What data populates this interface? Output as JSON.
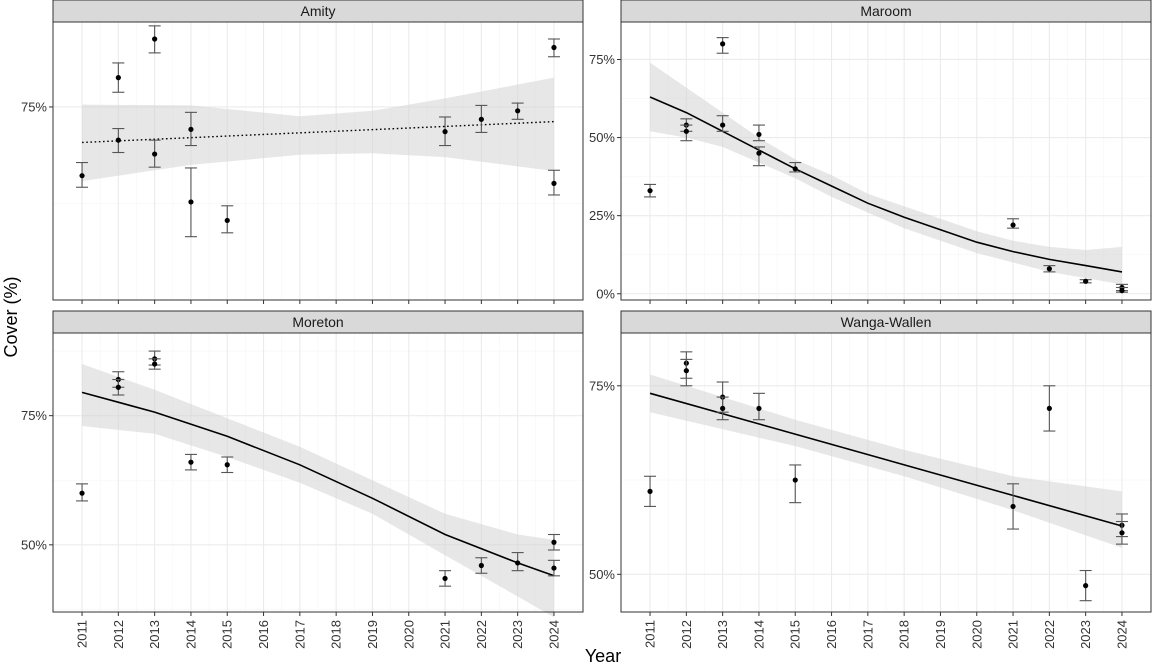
{
  "chart_data": {
    "type": "scatter",
    "xlabel": "Year",
    "ylabel": "Cover (%)",
    "x_ticks": [
      2011,
      2012,
      2013,
      2014,
      2015,
      2016,
      2017,
      2018,
      2019,
      2020,
      2021,
      2022,
      2023,
      2024
    ],
    "xlim": [
      2010.2,
      2024.8
    ],
    "colors": {
      "panel_bg": "#ffffff",
      "grid_major": "#ebebeb",
      "grid_minor": "#f5f5f5",
      "strip_bg": "#d9d9d9",
      "ribbon": "#d4d4d4",
      "line": "#000000",
      "error_bar": "#555555"
    },
    "panels": [
      {
        "name": "Amity",
        "ylim": [
          0.5,
          0.86
        ],
        "y_ticks": [
          0.75
        ],
        "y_tick_labels": [
          "75%"
        ],
        "points": [
          {
            "x": 2011,
            "y": 0.661,
            "lo": 0.646,
            "hi": 0.678
          },
          {
            "x": 2012,
            "y": 0.788,
            "lo": 0.769,
            "hi": 0.807
          },
          {
            "x": 2012,
            "y": 0.707,
            "lo": 0.691,
            "hi": 0.722
          },
          {
            "x": 2013,
            "y": 0.838,
            "lo": 0.82,
            "hi": 0.855
          },
          {
            "x": 2013,
            "y": 0.689,
            "lo": 0.672,
            "hi": 0.707
          },
          {
            "x": 2014,
            "y": 0.721,
            "lo": 0.7,
            "hi": 0.743
          },
          {
            "x": 2014,
            "y": 0.627,
            "lo": 0.582,
            "hi": 0.671
          },
          {
            "x": 2015,
            "y": 0.603,
            "lo": 0.587,
            "hi": 0.622
          },
          {
            "x": 2021,
            "y": 0.718,
            "lo": 0.7,
            "hi": 0.737
          },
          {
            "x": 2022,
            "y": 0.734,
            "lo": 0.717,
            "hi": 0.752
          },
          {
            "x": 2023,
            "y": 0.745,
            "lo": 0.734,
            "hi": 0.755
          },
          {
            "x": 2024,
            "y": 0.827,
            "lo": 0.815,
            "hi": 0.838
          },
          {
            "x": 2024,
            "y": 0.651,
            "lo": 0.636,
            "hi": 0.668
          }
        ],
        "fit": {
          "style": "dotted",
          "x0": 2011,
          "x1": 2024,
          "y0": 0.704,
          "y1": 0.731
        },
        "ribbon": [
          {
            "x": 2011,
            "lo": 0.654,
            "hi": 0.753
          },
          {
            "x": 2014,
            "lo": 0.675,
            "hi": 0.752
          },
          {
            "x": 2017,
            "lo": 0.688,
            "hi": 0.738
          },
          {
            "x": 2019,
            "lo": 0.69,
            "hi": 0.745
          },
          {
            "x": 2021,
            "lo": 0.685,
            "hi": 0.761
          },
          {
            "x": 2024,
            "lo": 0.667,
            "hi": 0.788
          }
        ]
      },
      {
        "name": "Maroom",
        "ylim": [
          -0.02,
          0.87
        ],
        "y_ticks": [
          0,
          0.25,
          0.5,
          0.75
        ],
        "y_tick_labels": [
          "0%",
          "25%",
          "50%",
          "75%"
        ],
        "points": [
          {
            "x": 2011,
            "y": 0.33,
            "lo": 0.31,
            "hi": 0.35
          },
          {
            "x": 2012,
            "y": 0.54,
            "lo": 0.52,
            "hi": 0.56
          },
          {
            "x": 2012,
            "y": 0.52,
            "lo": 0.49,
            "hi": 0.54
          },
          {
            "x": 2013,
            "y": 0.8,
            "lo": 0.77,
            "hi": 0.82
          },
          {
            "x": 2013,
            "y": 0.54,
            "lo": 0.52,
            "hi": 0.57
          },
          {
            "x": 2014,
            "y": 0.51,
            "lo": 0.49,
            "hi": 0.54
          },
          {
            "x": 2014,
            "y": 0.45,
            "lo": 0.41,
            "hi": 0.47
          },
          {
            "x": 2015,
            "y": 0.4,
            "lo": 0.39,
            "hi": 0.42
          },
          {
            "x": 2021,
            "y": 0.22,
            "lo": 0.21,
            "hi": 0.24
          },
          {
            "x": 2022,
            "y": 0.08,
            "lo": 0.07,
            "hi": 0.09
          },
          {
            "x": 2023,
            "y": 0.04,
            "lo": 0.035,
            "hi": 0.045
          },
          {
            "x": 2024,
            "y": 0.02,
            "lo": 0.01,
            "hi": 0.03
          },
          {
            "x": 2024,
            "y": 0.01,
            "lo": 0.005,
            "hi": 0.02
          }
        ],
        "fit": {
          "style": "solid",
          "curve": [
            {
              "x": 2011,
              "y": 0.63
            },
            {
              "x": 2012,
              "y": 0.58
            },
            {
              "x": 2013,
              "y": 0.52
            },
            {
              "x": 2014,
              "y": 0.46
            },
            {
              "x": 2015,
              "y": 0.4
            },
            {
              "x": 2016,
              "y": 0.345
            },
            {
              "x": 2017,
              "y": 0.29
            },
            {
              "x": 2018,
              "y": 0.245
            },
            {
              "x": 2019,
              "y": 0.205
            },
            {
              "x": 2020,
              "y": 0.165
            },
            {
              "x": 2021,
              "y": 0.135
            },
            {
              "x": 2022,
              "y": 0.11
            },
            {
              "x": 2023,
              "y": 0.09
            },
            {
              "x": 2024,
              "y": 0.07
            }
          ]
        },
        "ribbon": [
          {
            "x": 2011,
            "lo": 0.52,
            "hi": 0.74
          },
          {
            "x": 2012,
            "lo": 0.5,
            "hi": 0.66
          },
          {
            "x": 2013,
            "lo": 0.47,
            "hi": 0.58
          },
          {
            "x": 2014,
            "lo": 0.42,
            "hi": 0.5
          },
          {
            "x": 2015,
            "lo": 0.37,
            "hi": 0.43
          },
          {
            "x": 2016,
            "lo": 0.31,
            "hi": 0.38
          },
          {
            "x": 2017,
            "lo": 0.26,
            "hi": 0.32
          },
          {
            "x": 2018,
            "lo": 0.21,
            "hi": 0.28
          },
          {
            "x": 2019,
            "lo": 0.17,
            "hi": 0.24
          },
          {
            "x": 2020,
            "lo": 0.13,
            "hi": 0.2
          },
          {
            "x": 2021,
            "lo": 0.1,
            "hi": 0.17
          },
          {
            "x": 2022,
            "lo": 0.07,
            "hi": 0.15
          },
          {
            "x": 2023,
            "lo": 0.05,
            "hi": 0.14
          },
          {
            "x": 2024,
            "lo": 0.03,
            "hi": 0.15
          }
        ]
      },
      {
        "name": "Moreton",
        "ylim": [
          0.37,
          0.91
        ],
        "y_ticks": [
          0.5,
          0.75
        ],
        "y_tick_labels": [
          "50%",
          "75%"
        ],
        "points": [
          {
            "x": 2011,
            "y": 0.6,
            "lo": 0.585,
            "hi": 0.618
          },
          {
            "x": 2012,
            "y": 0.82,
            "lo": 0.805,
            "hi": 0.835
          },
          {
            "x": 2012,
            "y": 0.805,
            "lo": 0.79,
            "hi": 0.82
          },
          {
            "x": 2013,
            "y": 0.86,
            "lo": 0.848,
            "hi": 0.875
          },
          {
            "x": 2013,
            "y": 0.85,
            "lo": 0.84,
            "hi": 0.86
          },
          {
            "x": 2014,
            "y": 0.66,
            "lo": 0.645,
            "hi": 0.675
          },
          {
            "x": 2015,
            "y": 0.655,
            "lo": 0.64,
            "hi": 0.67
          },
          {
            "x": 2021,
            "y": 0.435,
            "lo": 0.42,
            "hi": 0.45
          },
          {
            "x": 2022,
            "y": 0.46,
            "lo": 0.445,
            "hi": 0.475
          },
          {
            "x": 2023,
            "y": 0.465,
            "lo": 0.45,
            "hi": 0.485
          },
          {
            "x": 2024,
            "y": 0.505,
            "lo": 0.49,
            "hi": 0.52
          },
          {
            "x": 2024,
            "y": 0.455,
            "lo": 0.44,
            "hi": 0.47
          }
        ],
        "fit": {
          "style": "solid",
          "curve": [
            {
              "x": 2011,
              "y": 0.795
            },
            {
              "x": 2013,
              "y": 0.757
            },
            {
              "x": 2015,
              "y": 0.71
            },
            {
              "x": 2017,
              "y": 0.655
            },
            {
              "x": 2019,
              "y": 0.59
            },
            {
              "x": 2021,
              "y": 0.52
            },
            {
              "x": 2023,
              "y": 0.465
            },
            {
              "x": 2024,
              "y": 0.44
            }
          ]
        },
        "ribbon": [
          {
            "x": 2011,
            "lo": 0.73,
            "hi": 0.85
          },
          {
            "x": 2013,
            "lo": 0.715,
            "hi": 0.8
          },
          {
            "x": 2015,
            "lo": 0.67,
            "hi": 0.745
          },
          {
            "x": 2017,
            "lo": 0.62,
            "hi": 0.69
          },
          {
            "x": 2019,
            "lo": 0.56,
            "hi": 0.625
          },
          {
            "x": 2021,
            "lo": 0.48,
            "hi": 0.56
          },
          {
            "x": 2023,
            "lo": 0.4,
            "hi": 0.52
          },
          {
            "x": 2024,
            "lo": 0.36,
            "hi": 0.51
          }
        ]
      },
      {
        "name": "Wanga-Wallen",
        "ylim": [
          0.45,
          0.82
        ],
        "y_ticks": [
          0.5,
          0.75
        ],
        "y_tick_labels": [
          "50%",
          "75%"
        ],
        "points": [
          {
            "x": 2011,
            "y": 0.61,
            "lo": 0.59,
            "hi": 0.63
          },
          {
            "x": 2012,
            "y": 0.78,
            "lo": 0.76,
            "hi": 0.795
          },
          {
            "x": 2012,
            "y": 0.77,
            "lo": 0.75,
            "hi": 0.785
          },
          {
            "x": 2013,
            "y": 0.735,
            "lo": 0.715,
            "hi": 0.755
          },
          {
            "x": 2013,
            "y": 0.72,
            "lo": 0.705,
            "hi": 0.735
          },
          {
            "x": 2014,
            "y": 0.72,
            "lo": 0.705,
            "hi": 0.74
          },
          {
            "x": 2015,
            "y": 0.625,
            "lo": 0.595,
            "hi": 0.645
          },
          {
            "x": 2021,
            "y": 0.59,
            "lo": 0.56,
            "hi": 0.62
          },
          {
            "x": 2022,
            "y": 0.72,
            "lo": 0.69,
            "hi": 0.75
          },
          {
            "x": 2023,
            "y": 0.485,
            "lo": 0.465,
            "hi": 0.505
          },
          {
            "x": 2024,
            "y": 0.565,
            "lo": 0.55,
            "hi": 0.58
          },
          {
            "x": 2024,
            "y": 0.555,
            "lo": 0.54,
            "hi": 0.57
          }
        ],
        "fit": {
          "style": "solid",
          "x0": 2011,
          "x1": 2024,
          "y0": 0.74,
          "y1": 0.564
        },
        "ribbon": [
          {
            "x": 2011,
            "lo": 0.715,
            "hi": 0.765
          },
          {
            "x": 2015,
            "lo": 0.67,
            "hi": 0.705
          },
          {
            "x": 2018,
            "lo": 0.63,
            "hi": 0.665
          },
          {
            "x": 2021,
            "lo": 0.585,
            "hi": 0.63
          },
          {
            "x": 2024,
            "lo": 0.535,
            "hi": 0.61
          }
        ]
      }
    ]
  }
}
